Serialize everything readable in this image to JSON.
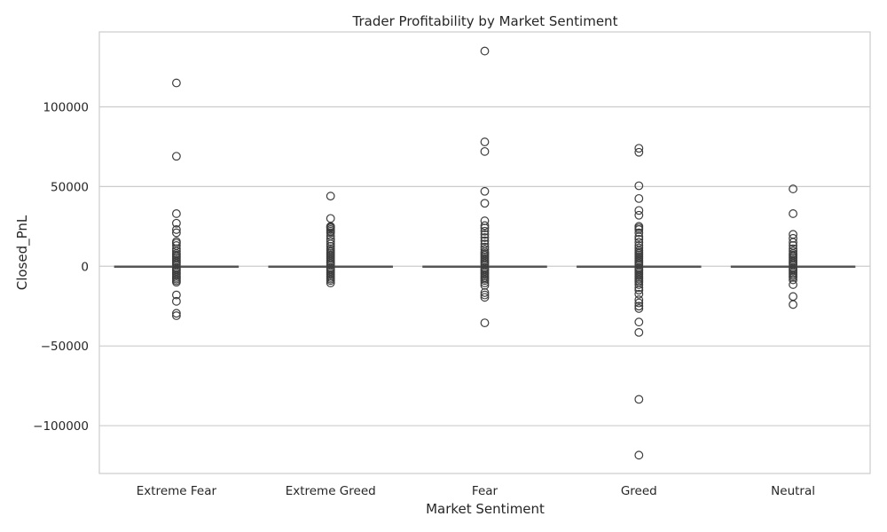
{
  "chart_data": {
    "type": "box",
    "title": "Trader Profitability by Market Sentiment",
    "xlabel": "Market Sentiment",
    "ylabel": "Closed_PnL",
    "ylim": [
      -130000,
      147000
    ],
    "yticks": [
      -100000,
      -50000,
      0,
      50000,
      100000
    ],
    "ytick_labels": [
      "−100000",
      "−50000",
      "0",
      "50000",
      "100000"
    ],
    "grid": "horizontal",
    "colors": {
      "box": "#555555",
      "grid": "#cccccc",
      "spine": "#cccccc",
      "text": "#262626"
    },
    "categories": [
      "Extreme Fear",
      "Extreme Greed",
      "Fear",
      "Greed",
      "Neutral"
    ],
    "series": [
      {
        "category": "Extreme Fear",
        "whisker_low": 0,
        "q1": 0,
        "median": 0,
        "q3": 0,
        "whisker_high": 0,
        "outliers": [
          115000,
          69000,
          33000,
          27000,
          23000,
          21000,
          15500,
          14500,
          13000,
          11000,
          9500,
          8000,
          7000,
          6000,
          5000,
          4000,
          3000,
          2000,
          1000,
          -1000,
          -2000,
          -3000,
          -4000,
          -5000,
          -6000,
          -7000,
          -8000,
          -9000,
          -10000,
          -18000,
          -22000,
          -29500,
          -31000
        ]
      },
      {
        "category": "Extreme Greed",
        "whisker_low": 0,
        "q1": 0,
        "median": 0,
        "q3": 0,
        "whisker_high": 0,
        "outliers": [
          44000,
          30000,
          25000,
          24500,
          24000,
          23000,
          22000,
          21000,
          19000,
          17000,
          15500,
          14000,
          12500,
          11000,
          10000,
          9000,
          8000,
          7000,
          6000,
          5000,
          4000,
          3000,
          2000,
          1000,
          -1000,
          -2000,
          -3000,
          -4000,
          -5000,
          -6000,
          -7000,
          -8000,
          -9000,
          -10500
        ]
      },
      {
        "category": "Fear",
        "whisker_low": 0,
        "q1": 0,
        "median": 0,
        "q3": 0,
        "whisker_high": 0,
        "outliers": [
          135000,
          78000,
          72000,
          47000,
          39500,
          28500,
          25500,
          24000,
          22000,
          20000,
          18000,
          16000,
          14000,
          12000,
          10500,
          9000,
          8000,
          7000,
          6000,
          5000,
          4000,
          3000,
          2000,
          1000,
          -1000,
          -2000,
          -3000,
          -4000,
          -5000,
          -6000,
          -7000,
          -8000,
          -9000,
          -10500,
          -12000,
          -16500,
          -18000,
          -19500,
          -35500
        ]
      },
      {
        "category": "Greed",
        "whisker_low": 0,
        "q1": 0,
        "median": 0,
        "q3": 0,
        "whisker_high": 0,
        "outliers": [
          74000,
          71500,
          50500,
          42500,
          35000,
          32000,
          25000,
          24000,
          23000,
          21000,
          18500,
          17000,
          15000,
          13000,
          11500,
          10000,
          9000,
          8000,
          7000,
          6000,
          5000,
          4000,
          3000,
          2000,
          1000,
          -1000,
          -2000,
          -3000,
          -4000,
          -5000,
          -6000,
          -7000,
          -8000,
          -9000,
          -10000,
          -11500,
          -13500,
          -15000,
          -17500,
          -21000,
          -23000,
          -25000,
          -26500,
          -35000,
          -41500,
          -83500,
          -118500
        ]
      },
      {
        "category": "Neutral",
        "whisker_low": 0,
        "q1": 0,
        "median": 0,
        "q3": 0,
        "whisker_high": 0,
        "outliers": [
          48500,
          33000,
          20000,
          17500,
          15000,
          13000,
          11000,
          9500,
          8000,
          7000,
          6000,
          5000,
          4000,
          3000,
          2000,
          1000,
          -1000,
          -2000,
          -3000,
          -4000,
          -5000,
          -6000,
          -7000,
          -8500,
          -11500,
          -19000,
          -24000
        ]
      }
    ]
  }
}
